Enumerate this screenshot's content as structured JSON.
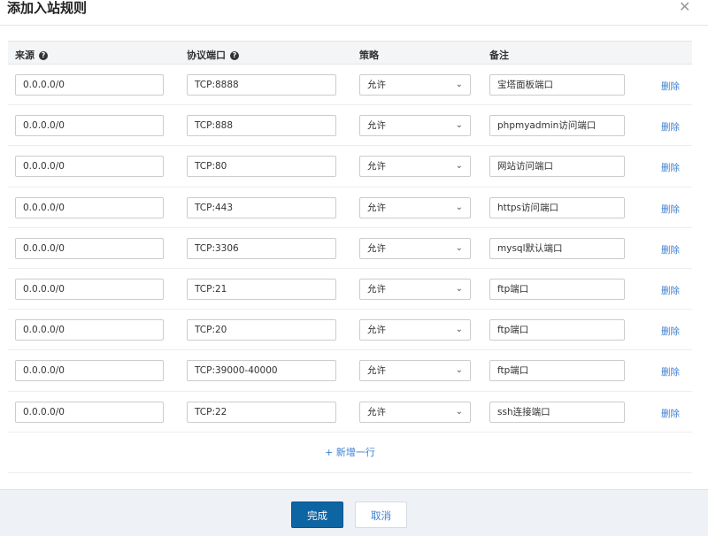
{
  "dialog": {
    "title": "添加入站规则",
    "close_icon": "close-icon"
  },
  "table": {
    "headers": {
      "source": "来源",
      "port": "协议端口",
      "policy": "策略",
      "note": "备注"
    },
    "help_icon": "?",
    "delete_label": "删除",
    "rows": [
      {
        "source": "0.0.0.0/0",
        "port": "TCP:8888",
        "policy": "允许",
        "note": "宝塔面板端口"
      },
      {
        "source": "0.0.0.0/0",
        "port": "TCP:888",
        "policy": "允许",
        "note": "phpmyadmin访问端口"
      },
      {
        "source": "0.0.0.0/0",
        "port": "TCP:80",
        "policy": "允许",
        "note": "网站访问端口"
      },
      {
        "source": "0.0.0.0/0",
        "port": "TCP:443",
        "policy": "允许",
        "note": "https访问端口"
      },
      {
        "source": "0.0.0.0/0",
        "port": "TCP:3306",
        "policy": "允许",
        "note": "mysql默认端口"
      },
      {
        "source": "0.0.0.0/0",
        "port": "TCP:21",
        "policy": "允许",
        "note": "ftp端口"
      },
      {
        "source": "0.0.0.0/0",
        "port": "TCP:20",
        "policy": "允许",
        "note": "ftp端口"
      },
      {
        "source": "0.0.0.0/0",
        "port": "TCP:39000-40000",
        "policy": "允许",
        "note": "ftp端口"
      },
      {
        "source": "0.0.0.0/0",
        "port": "TCP:22",
        "policy": "允许",
        "note": "ssh连接端口"
      }
    ],
    "add_row_label": "+ 新增一行"
  },
  "footer": {
    "ok_label": "完成",
    "cancel_label": "取消"
  },
  "colors": {
    "primary": "#0e65a3",
    "link": "#3d7fd1"
  }
}
